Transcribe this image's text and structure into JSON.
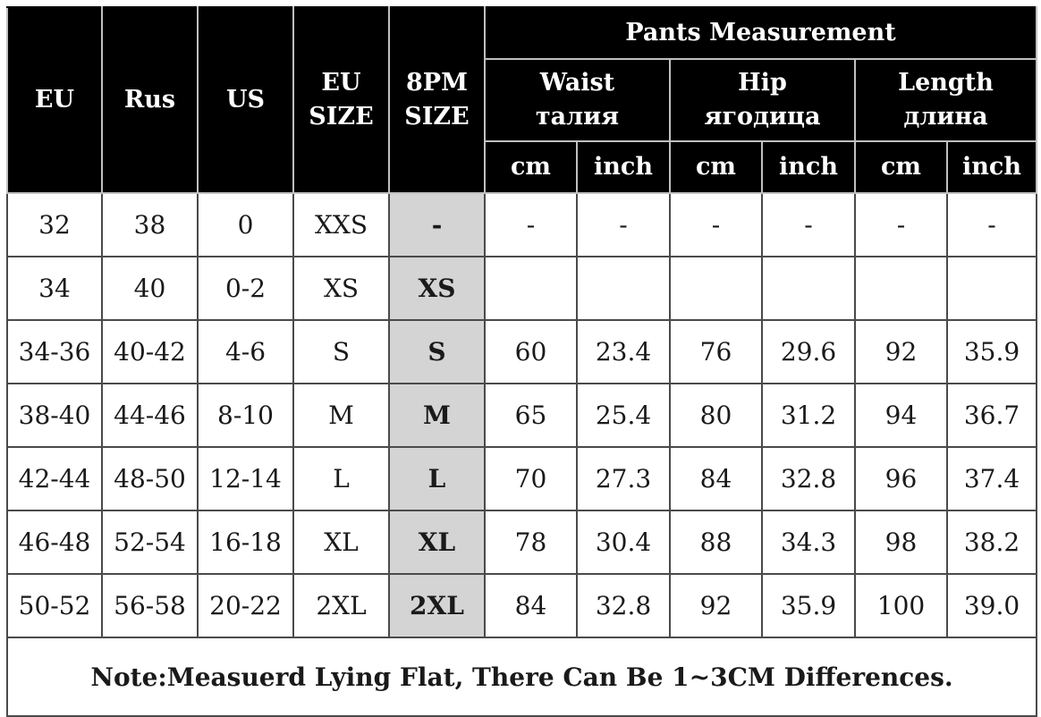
{
  "headers": {
    "eu": "EU",
    "rus": "Rus",
    "us": "US",
    "eu_size": [
      "EU",
      "SIZE"
    ],
    "pm_size": [
      "8PM",
      "SIZE"
    ],
    "group": "Pants Measurement",
    "waist": [
      "Waist",
      "талия"
    ],
    "hip": [
      "Hip",
      "ягодица"
    ],
    "length": [
      "Length",
      "длина"
    ],
    "cm": "cm",
    "inch": "inch"
  },
  "rows": [
    [
      "32",
      "38",
      "0",
      "XXS",
      "-",
      "-",
      "-",
      "-",
      "-",
      "-",
      "-"
    ],
    [
      "34",
      "40",
      "0-2",
      "XS",
      "XS",
      "",
      "",
      "",
      "",
      "",
      ""
    ],
    [
      "34-36",
      "40-42",
      "4-6",
      "S",
      "S",
      "60",
      "23.4",
      "76",
      "29.6",
      "92",
      "35.9"
    ],
    [
      "38-40",
      "44-46",
      "8-10",
      "M",
      "M",
      "65",
      "25.4",
      "80",
      "31.2",
      "94",
      "36.7"
    ],
    [
      "42-44",
      "48-50",
      "12-14",
      "L",
      "L",
      "70",
      "27.3",
      "84",
      "32.8",
      "96",
      "37.4"
    ],
    [
      "46-48",
      "52-54",
      "16-18",
      "XL",
      "XL",
      "78",
      "30.4",
      "88",
      "34.3",
      "98",
      "38.2"
    ],
    [
      "50-52",
      "56-58",
      "20-22",
      "2XL",
      "2XL",
      "84",
      "32.8",
      "92",
      "35.9",
      "100",
      "39.0"
    ]
  ],
  "note": "Note:Measuerd Lying Flat, There Can Be 1~3CM Differences.",
  "colors": {
    "header_bg": "#000000",
    "header_text": "#ffffff",
    "highlight_column": "#d4d4d4",
    "border": "#4a4a4a"
  }
}
